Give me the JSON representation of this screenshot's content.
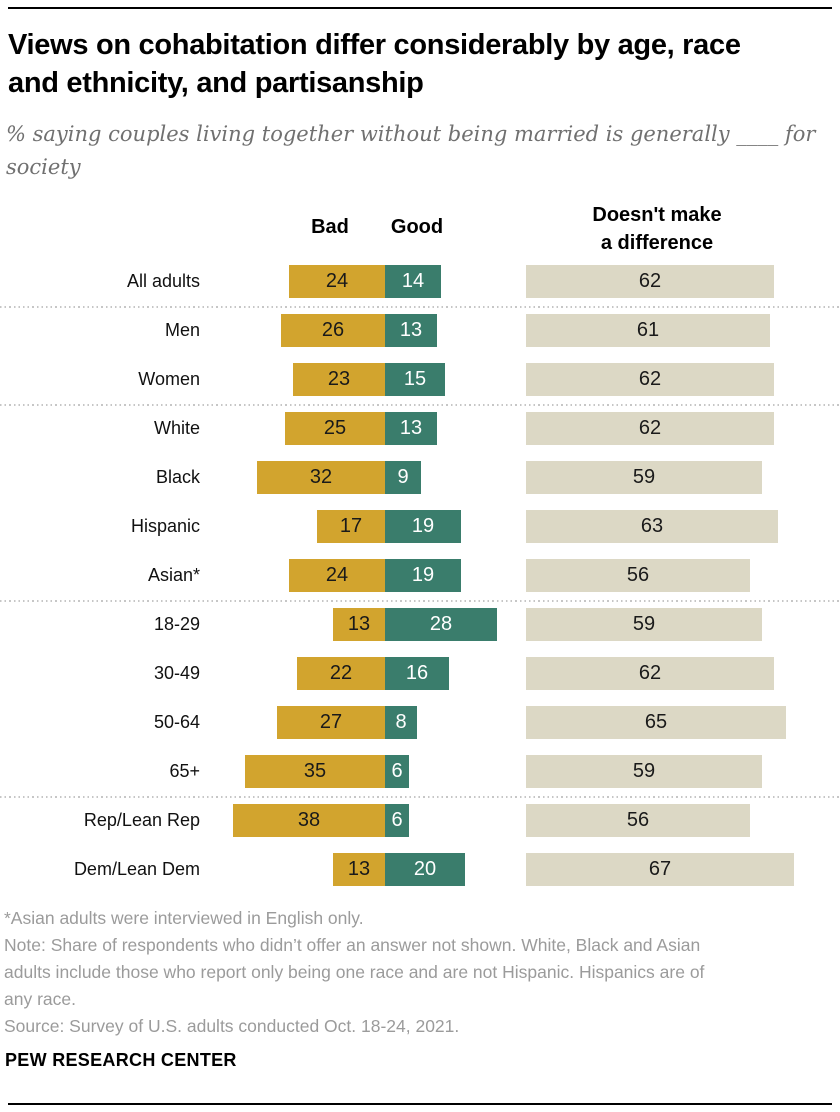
{
  "header": {
    "title_line1": "Views on cohabitation differ considerably by age, race",
    "title_line2": "and ethnicity, and partisanship",
    "subtitle_line1": "% saying couples living together without being married is generally ____ for",
    "subtitle_line2": "society"
  },
  "chart_data": {
    "type": "bar",
    "variant": "diverging horizontal bars with separate neutral column",
    "unit": "%",
    "column_headers": {
      "bad": "Bad",
      "good": "Good",
      "neutral_line1": "Doesn't make",
      "neutral_line2": "a difference"
    },
    "categories": [
      "All adults",
      "Men",
      "Women",
      "White",
      "Black",
      "Hispanic",
      "Asian*",
      "18-29",
      "30-49",
      "50-64",
      "65+",
      "Rep/Lean Rep",
      "Dem/Lean Dem"
    ],
    "series": [
      {
        "name": "Bad",
        "color": "#d2a42e",
        "label_color": "#1a1a1a",
        "values": [
          24,
          26,
          23,
          25,
          32,
          17,
          24,
          13,
          22,
          27,
          35,
          38,
          13
        ]
      },
      {
        "name": "Good",
        "color": "#3a7d6c",
        "label_color": "#ffffff",
        "values": [
          14,
          13,
          15,
          13,
          9,
          19,
          19,
          28,
          16,
          8,
          6,
          6,
          20
        ]
      },
      {
        "name": "Doesn't make a difference",
        "color": "#dcd8c5",
        "label_color": "#1a1a1a",
        "values": [
          62,
          61,
          62,
          62,
          59,
          63,
          56,
          59,
          62,
          65,
          59,
          56,
          67
        ]
      }
    ],
    "group_separators_after_index": [
      0,
      2,
      6,
      10
    ],
    "layout_hints": {
      "value_labels": "inside bars",
      "grid": "off",
      "legend": "column headers above bars"
    }
  },
  "footer": {
    "asterisk_note": "*Asian adults were interviewed in English only.",
    "note_lines": [
      "Note: Share of respondents who didn’t offer an answer not shown. White, Black and Asian",
      "adults include those who report only being one race and are not Hispanic. Hispanics are of",
      "any race."
    ],
    "source": "Source: Survey of U.S. adults conducted Oct. 18-24, 2021.",
    "brand": "PEW RESEARCH CENTER"
  }
}
